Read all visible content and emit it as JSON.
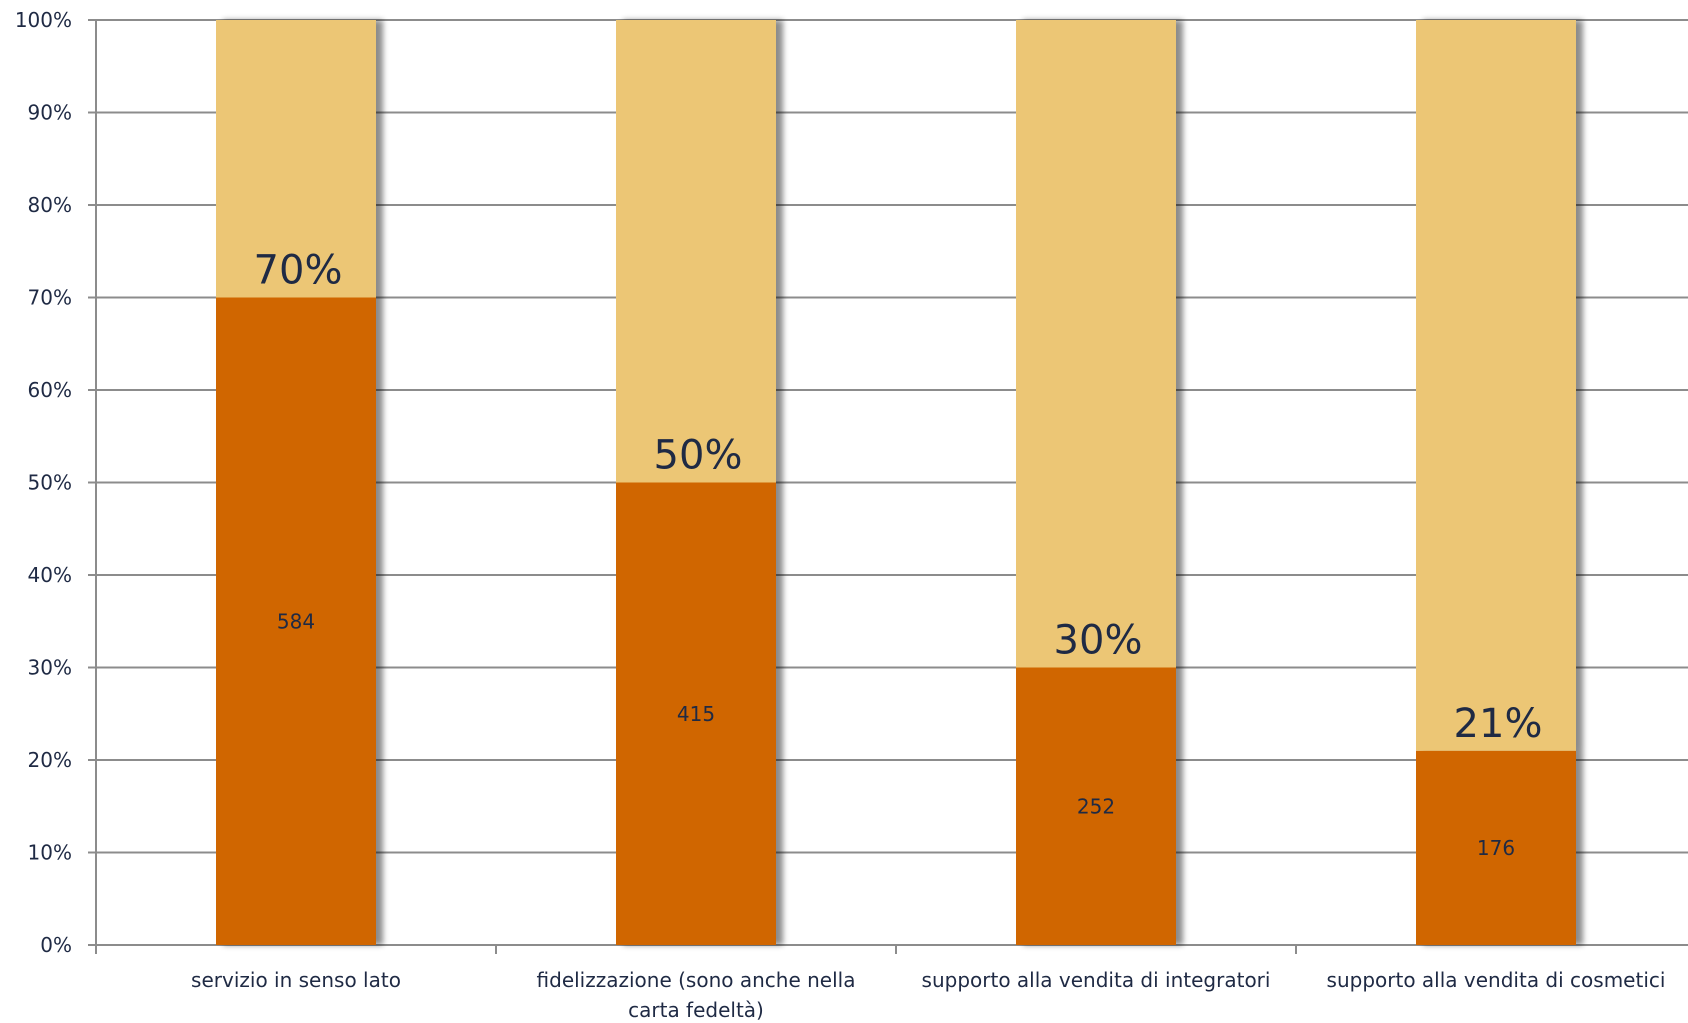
{
  "chart_data": {
    "type": "bar",
    "stacked": true,
    "categories": [
      "servizio in senso lato",
      "fidelizzazione (sono anche nella carta fedeltà)",
      "supporto alla vendita di integratori",
      "supporto alla vendita di cosmetici"
    ],
    "category_lines": [
      [
        "servizio in senso lato"
      ],
      [
        "fidelizzazione (sono anche nella",
        "carta fedeltà)"
      ],
      [
        "supporto alla vendita di integratori"
      ],
      [
        "supporto alla vendita di cosmetici"
      ]
    ],
    "series": [
      {
        "values": [
          70,
          50,
          30,
          21
        ],
        "color": "#d06600"
      },
      {
        "values": [
          30,
          50,
          70,
          79
        ],
        "color": "#ecc674"
      }
    ],
    "percent_labels": [
      "70%",
      "50%",
      "30%",
      "21%"
    ],
    "count_labels": [
      "584",
      "415",
      "252",
      "176"
    ],
    "yticks": [
      "0%",
      "10%",
      "20%",
      "30%",
      "40%",
      "50%",
      "60%",
      "70%",
      "80%",
      "90%",
      "100%"
    ],
    "ylim": [
      0,
      100
    ],
    "grid": true,
    "title": "",
    "xlabel": "",
    "ylabel": ""
  }
}
